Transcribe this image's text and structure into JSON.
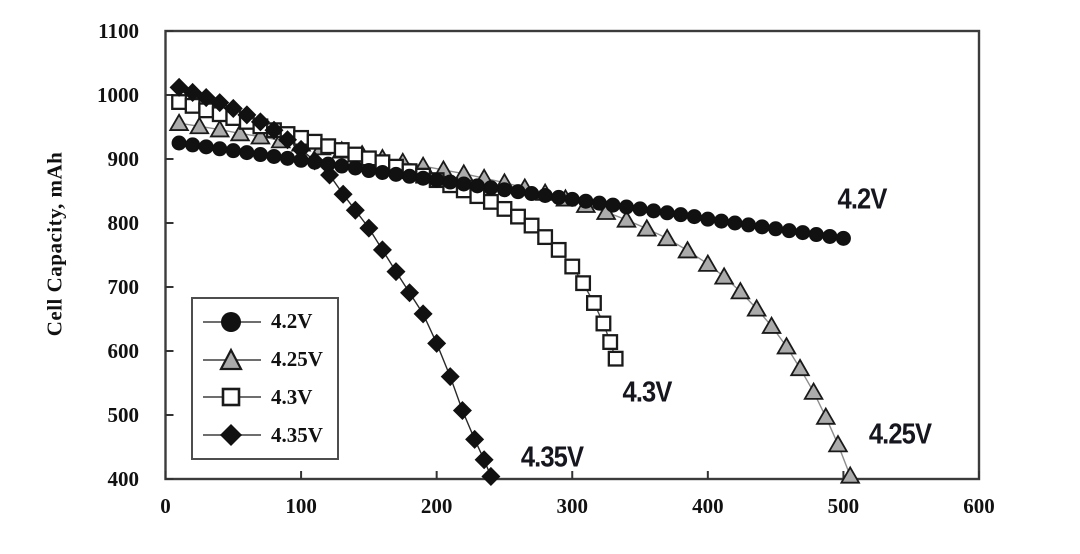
{
  "chart_data": {
    "type": "line",
    "title": "",
    "xlabel": "",
    "ylabel": "Cell Capacity, mAh",
    "xlim": [
      0,
      600
    ],
    "ylim": [
      400,
      1100
    ],
    "x_ticks": [
      "0",
      "100",
      "200",
      "300",
      "400",
      "500",
      "600"
    ],
    "x_tick_values": [
      0,
      100,
      200,
      300,
      400,
      500,
      600
    ],
    "y_ticks": [
      "400",
      "500",
      "600",
      "700",
      "800",
      "900",
      "1000",
      "1100"
    ],
    "y_tick_values": [
      400,
      500,
      600,
      700,
      800,
      900,
      1000,
      1100
    ],
    "grid": false,
    "legend_position": "inside-lower-left",
    "series": [
      {
        "name": "4.2V",
        "marker": "circle",
        "marker_fill": "#111111",
        "marker_stroke": "#111111",
        "line_color": "#2a2a2a",
        "z": 3,
        "x": [
          10,
          20,
          30,
          40,
          50,
          60,
          70,
          80,
          90,
          100,
          110,
          120,
          130,
          140,
          150,
          160,
          170,
          180,
          190,
          200,
          210,
          220,
          230,
          240,
          250,
          260,
          270,
          280,
          290,
          300,
          310,
          320,
          330,
          340,
          350,
          360,
          370,
          380,
          390,
          400,
          410,
          420,
          430,
          440,
          450,
          460,
          470,
          480,
          490,
          500
        ],
        "y": [
          925,
          922,
          919,
          916,
          913,
          910,
          907,
          904,
          901,
          898,
          895,
          892,
          889,
          886,
          882,
          879,
          876,
          873,
          870,
          867,
          864,
          861,
          858,
          855,
          852,
          849,
          846,
          843,
          840,
          837,
          834,
          831,
          828,
          825,
          822,
          819,
          816,
          813,
          810,
          806,
          803,
          800,
          797,
          794,
          791,
          788,
          785,
          782,
          779,
          776
        ]
      },
      {
        "name": "4.25V",
        "marker": "triangle",
        "marker_fill": "#ababab",
        "marker_stroke": "#1a1a1a",
        "line_color": "#8d8d8d",
        "z": 0,
        "x": [
          10,
          25,
          40,
          55,
          70,
          85,
          100,
          115,
          130,
          145,
          160,
          175,
          190,
          205,
          220,
          235,
          250,
          265,
          280,
          295,
          310,
          325,
          340,
          355,
          370,
          385,
          400,
          412,
          424,
          436,
          447,
          458,
          468,
          478,
          487,
          496,
          505
        ],
        "y": [
          956,
          951,
          946,
          940,
          935,
          929,
          924,
          918,
          913,
          907,
          901,
          895,
          889,
          883,
          877,
          870,
          863,
          855,
          847,
          838,
          828,
          817,
          805,
          791,
          776,
          757,
          736,
          716,
          693,
          666,
          639,
          607,
          573,
          536,
          497,
          454,
          405
        ]
      },
      {
        "name": "4.3V",
        "marker": "square",
        "marker_fill": "#ffffff",
        "marker_stroke": "#1a1a1a",
        "line_color": "#4a4a4a",
        "z": 1,
        "x": [
          10,
          20,
          30,
          40,
          50,
          60,
          70,
          80,
          90,
          100,
          110,
          120,
          130,
          140,
          150,
          160,
          170,
          180,
          190,
          200,
          210,
          220,
          230,
          240,
          250,
          260,
          270,
          280,
          290,
          300,
          308,
          316,
          323,
          328,
          332
        ],
        "y": [
          989,
          983,
          976,
          970,
          964,
          958,
          951,
          945,
          939,
          933,
          927,
          920,
          914,
          907,
          901,
          895,
          888,
          881,
          874,
          867,
          859,
          851,
          842,
          833,
          822,
          810,
          796,
          778,
          758,
          732,
          706,
          675,
          643,
          614,
          588
        ]
      },
      {
        "name": "4.35V",
        "marker": "diamond",
        "marker_fill": "#111111",
        "marker_stroke": "#111111",
        "line_color": "#2a2a2a",
        "z": 2,
        "x": [
          10,
          20,
          30,
          40,
          50,
          60,
          70,
          80,
          90,
          100,
          110,
          121,
          131,
          140,
          150,
          160,
          170,
          180,
          190,
          200,
          210,
          219,
          228,
          235,
          240
        ],
        "y": [
          1012,
          1004,
          996,
          988,
          979,
          969,
          958,
          945,
          930,
          915,
          897,
          875,
          845,
          820,
          792,
          758,
          724,
          691,
          658,
          612,
          560,
          507,
          462,
          430,
          404
        ]
      }
    ],
    "annotations": [
      {
        "text": "4.2V",
        "x": 514,
        "y": 836
      },
      {
        "text": "4.25V",
        "x": 542,
        "y": 469
      },
      {
        "text": "4.3V",
        "x": 355,
        "y": 534
      },
      {
        "text": "4.35V",
        "x": 285,
        "y": 433
      }
    ]
  },
  "colors": {
    "frame": "#3c3c3c",
    "tick": "#333333",
    "tick_label": "#111111",
    "annotation_text": "#16161f",
    "background": "#ffffff"
  }
}
